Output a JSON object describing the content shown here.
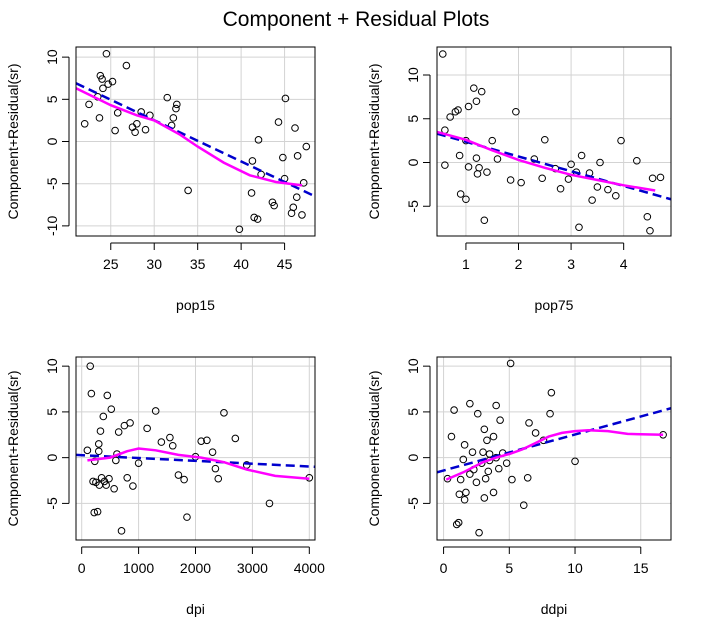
{
  "figure": {
    "title": "Component + Residual Plots"
  },
  "chart_data": [
    {
      "type": "scatter",
      "xlabel": "pop15",
      "ylabel": "Component+Residual(sr)",
      "xlim": [
        21,
        48.5
      ],
      "ylim": [
        -11.2,
        11.2
      ],
      "xticks": [
        25,
        30,
        35,
        40,
        45
      ],
      "yticks": [
        -10,
        -5,
        0,
        5,
        10
      ],
      "grid": true,
      "points": [
        [
          22,
          2.1
        ],
        [
          22.5,
          4.4
        ],
        [
          23.5,
          5.3
        ],
        [
          23.7,
          2.8
        ],
        [
          23.8,
          7.8
        ],
        [
          24,
          7.4
        ],
        [
          24.1,
          6.3
        ],
        [
          24.5,
          10.4
        ],
        [
          24.7,
          6.8
        ],
        [
          25.2,
          7.1
        ],
        [
          25.5,
          1.3
        ],
        [
          25.8,
          3.4
        ],
        [
          26.8,
          9
        ],
        [
          27.5,
          1.7
        ],
        [
          27.8,
          1.1
        ],
        [
          28,
          2.1
        ],
        [
          28.5,
          3.5
        ],
        [
          29,
          1.4
        ],
        [
          29.5,
          3.1
        ],
        [
          31.5,
          5.2
        ],
        [
          32,
          1.9
        ],
        [
          32.2,
          2.8
        ],
        [
          32.5,
          3.9
        ],
        [
          32.6,
          4.4
        ],
        [
          33.9,
          -5.8
        ],
        [
          39.8,
          -10.4
        ],
        [
          41.2,
          -6.1
        ],
        [
          41.3,
          -2.3
        ],
        [
          41.5,
          -9
        ],
        [
          41.9,
          -9.2
        ],
        [
          42,
          0.2
        ],
        [
          42.3,
          -3.9
        ],
        [
          43.6,
          -7.2
        ],
        [
          43.8,
          -7.6
        ],
        [
          44.3,
          2.3
        ],
        [
          44.8,
          -1.9
        ],
        [
          45,
          -4.4
        ],
        [
          45.1,
          5.1
        ],
        [
          45.8,
          -8.5
        ],
        [
          46,
          -7.8
        ],
        [
          46.2,
          1.6
        ],
        [
          46.4,
          -6.6
        ],
        [
          46.5,
          -1.7
        ],
        [
          47,
          -8.7
        ],
        [
          47.2,
          -4.9
        ],
        [
          47.5,
          -0.6
        ]
      ],
      "fit_line": [
        [
          21,
          6.9
        ],
        [
          48.5,
          -6.5
        ]
      ],
      "smooth": [
        [
          21,
          6.3
        ],
        [
          25,
          4.3
        ],
        [
          28,
          3.1
        ],
        [
          30,
          2.5
        ],
        [
          33,
          0.8
        ],
        [
          35,
          -0.6
        ],
        [
          38,
          -2.5
        ],
        [
          41,
          -4.0
        ],
        [
          44,
          -4.8
        ],
        [
          47,
          -5.2
        ]
      ]
    },
    {
      "type": "scatter",
      "xlabel": "pop75",
      "ylabel": "Component+Residual(sr)",
      "xlim": [
        0.45,
        4.9
      ],
      "ylim": [
        -8.4,
        13.2
      ],
      "xticks": [
        1,
        2,
        3,
        4
      ],
      "yticks": [
        -5,
        0,
        5,
        10
      ],
      "grid": true,
      "points": [
        [
          0.56,
          12.4
        ],
        [
          0.6,
          3.7
        ],
        [
          0.6,
          -0.3
        ],
        [
          0.7,
          5.2
        ],
        [
          0.8,
          5.8
        ],
        [
          0.85,
          6.0
        ],
        [
          0.88,
          0.8
        ],
        [
          0.9,
          -3.6
        ],
        [
          1.0,
          -4.2
        ],
        [
          1.0,
          2.5
        ],
        [
          1.05,
          -0.5
        ],
        [
          1.05,
          6.4
        ],
        [
          1.15,
          8.5
        ],
        [
          1.2,
          7.0
        ],
        [
          1.2,
          0.5
        ],
        [
          1.22,
          -1.3
        ],
        [
          1.25,
          -0.6
        ],
        [
          1.3,
          8.1
        ],
        [
          1.35,
          -6.6
        ],
        [
          1.4,
          -1.1
        ],
        [
          1.5,
          2.5
        ],
        [
          1.6,
          0.4
        ],
        [
          1.85,
          -2.0
        ],
        [
          1.95,
          5.8
        ],
        [
          2.05,
          -2.3
        ],
        [
          2.3,
          0.4
        ],
        [
          2.45,
          -1.8
        ],
        [
          2.5,
          2.6
        ],
        [
          2.7,
          -0.7
        ],
        [
          2.8,
          -3.0
        ],
        [
          2.95,
          -1.9
        ],
        [
          3.0,
          -0.2
        ],
        [
          3.1,
          -1.1
        ],
        [
          3.15,
          -7.4
        ],
        [
          3.2,
          0.8
        ],
        [
          3.35,
          -1.2
        ],
        [
          3.4,
          -4.3
        ],
        [
          3.5,
          -2.8
        ],
        [
          3.55,
          0.0
        ],
        [
          3.7,
          -3.1
        ],
        [
          3.85,
          -3.8
        ],
        [
          3.95,
          2.5
        ],
        [
          4.25,
          0.2
        ],
        [
          4.45,
          -6.2
        ],
        [
          4.5,
          -7.8
        ],
        [
          4.55,
          -1.8
        ],
        [
          4.7,
          -1.7
        ]
      ],
      "fit_line": [
        [
          0.45,
          3.3
        ],
        [
          4.9,
          -4.2
        ]
      ],
      "smooth": [
        [
          0.45,
          3.5
        ],
        [
          1.0,
          2.6
        ],
        [
          1.5,
          1.4
        ],
        [
          2.0,
          0.3
        ],
        [
          2.5,
          -0.6
        ],
        [
          3.0,
          -1.4
        ],
        [
          3.5,
          -2.0
        ],
        [
          4.0,
          -2.6
        ],
        [
          4.6,
          -3.2
        ]
      ]
    },
    {
      "type": "scatter",
      "xlabel": "dpi",
      "ylabel": "Component+Residual(sr)",
      "xlim": [
        -100,
        4100
      ],
      "ylim": [
        -9,
        11
      ],
      "xticks": [
        0,
        1000,
        2000,
        3000,
        4000
      ],
      "yticks": [
        -5,
        0,
        5,
        10
      ],
      "grid": true,
      "points": [
        [
          100,
          0.8
        ],
        [
          150,
          10
        ],
        [
          170,
          7
        ],
        [
          200,
          -2.6
        ],
        [
          220,
          -6
        ],
        [
          230,
          -0.4
        ],
        [
          250,
          -2.7
        ],
        [
          280,
          -5.9
        ],
        [
          300,
          0.7
        ],
        [
          300,
          1.5
        ],
        [
          310,
          -3
        ],
        [
          330,
          2.9
        ],
        [
          350,
          -2.2
        ],
        [
          380,
          4.5
        ],
        [
          400,
          -2.6
        ],
        [
          430,
          -3
        ],
        [
          450,
          6.8
        ],
        [
          480,
          -2.3
        ],
        [
          520,
          5.3
        ],
        [
          570,
          -3.4
        ],
        [
          600,
          -0.3
        ],
        [
          620,
          0.4
        ],
        [
          650,
          2.8
        ],
        [
          700,
          -8
        ],
        [
          750,
          3.5
        ],
        [
          800,
          -2.2
        ],
        [
          850,
          3.8
        ],
        [
          900,
          -3.1
        ],
        [
          1000,
          -0.6
        ],
        [
          1150,
          3.2
        ],
        [
          1300,
          5.1
        ],
        [
          1400,
          1.7
        ],
        [
          1550,
          2.2
        ],
        [
          1600,
          1.3
        ],
        [
          1700,
          -1.9
        ],
        [
          1800,
          -2.4
        ],
        [
          1850,
          -6.5
        ],
        [
          2000,
          0.1
        ],
        [
          2100,
          1.8
        ],
        [
          2200,
          1.9
        ],
        [
          2300,
          0.6
        ],
        [
          2350,
          -1.2
        ],
        [
          2400,
          -2.3
        ],
        [
          2500,
          4.9
        ],
        [
          2700,
          2.1
        ],
        [
          2900,
          -0.8
        ],
        [
          3300,
          -5
        ],
        [
          4000,
          -2.2
        ]
      ],
      "fit_line": [
        [
          -100,
          0.3
        ],
        [
          4100,
          -1.0
        ]
      ],
      "smooth": [
        [
          100,
          -0.3
        ],
        [
          500,
          0.0
        ],
        [
          800,
          0.7
        ],
        [
          1000,
          1.0
        ],
        [
          1300,
          0.8
        ],
        [
          1700,
          0.3
        ],
        [
          2100,
          0.0
        ],
        [
          2500,
          -0.5
        ],
        [
          2900,
          -1.3
        ],
        [
          3400,
          -2.0
        ],
        [
          4000,
          -2.3
        ]
      ]
    },
    {
      "type": "scatter",
      "xlabel": "ddpi",
      "ylabel": "Component+Residual(sr)",
      "xlim": [
        -0.5,
        17.3
      ],
      "ylim": [
        -9,
        11
      ],
      "xticks": [
        0,
        5,
        10,
        15
      ],
      "yticks": [
        -5,
        0,
        5,
        10
      ],
      "grid": true,
      "points": [
        [
          0.3,
          -2.3
        ],
        [
          0.6,
          2.3
        ],
        [
          0.8,
          5.2
        ],
        [
          1,
          -7.3
        ],
        [
          1.15,
          -7.1
        ],
        [
          1.2,
          -4
        ],
        [
          1.3,
          -2.4
        ],
        [
          1.5,
          -0.2
        ],
        [
          1.6,
          -4.6
        ],
        [
          1.6,
          1.4
        ],
        [
          1.7,
          -3.8
        ],
        [
          2,
          5.9
        ],
        [
          2,
          -1.8
        ],
        [
          2.2,
          0.6
        ],
        [
          2.3,
          -1.3
        ],
        [
          2.5,
          -2.7
        ],
        [
          2.6,
          4.8
        ],
        [
          2.7,
          -8.2
        ],
        [
          2.9,
          -0.6
        ],
        [
          3,
          0.6
        ],
        [
          3.1,
          3.1
        ],
        [
          3.1,
          -4.4
        ],
        [
          3.2,
          -2.3
        ],
        [
          3.3,
          1.9
        ],
        [
          3.4,
          -1.5
        ],
        [
          3.5,
          -0.3
        ],
        [
          3.5,
          0.4
        ],
        [
          3.8,
          2.3
        ],
        [
          3.8,
          -3.8
        ],
        [
          4,
          5.7
        ],
        [
          4,
          0
        ],
        [
          4.2,
          -1.2
        ],
        [
          4.3,
          4.1
        ],
        [
          4.5,
          0.5
        ],
        [
          4.8,
          -0.6
        ],
        [
          5.1,
          10.3
        ],
        [
          5.2,
          -2.4
        ],
        [
          6.1,
          -5.2
        ],
        [
          6.4,
          -2.2
        ],
        [
          6.5,
          3.8
        ],
        [
          7,
          2.7
        ],
        [
          7.6,
          1.9
        ],
        [
          8.1,
          4.8
        ],
        [
          8.2,
          7.1
        ],
        [
          10,
          -0.4
        ],
        [
          16.7,
          2.5
        ]
      ],
      "fit_line": [
        [
          -0.5,
          -1.6
        ],
        [
          17.3,
          5.4
        ]
      ],
      "smooth": [
        [
          0.2,
          -2.4
        ],
        [
          1.5,
          -1.6
        ],
        [
          3,
          -0.5
        ],
        [
          4,
          0.0
        ],
        [
          5,
          0.4
        ],
        [
          6,
          0.9
        ],
        [
          7,
          1.6
        ],
        [
          8,
          2.3
        ],
        [
          9,
          2.7
        ],
        [
          10,
          2.9
        ],
        [
          11,
          3.0
        ],
        [
          12.5,
          2.9
        ],
        [
          14,
          2.6
        ],
        [
          16.7,
          2.5
        ]
      ]
    }
  ]
}
